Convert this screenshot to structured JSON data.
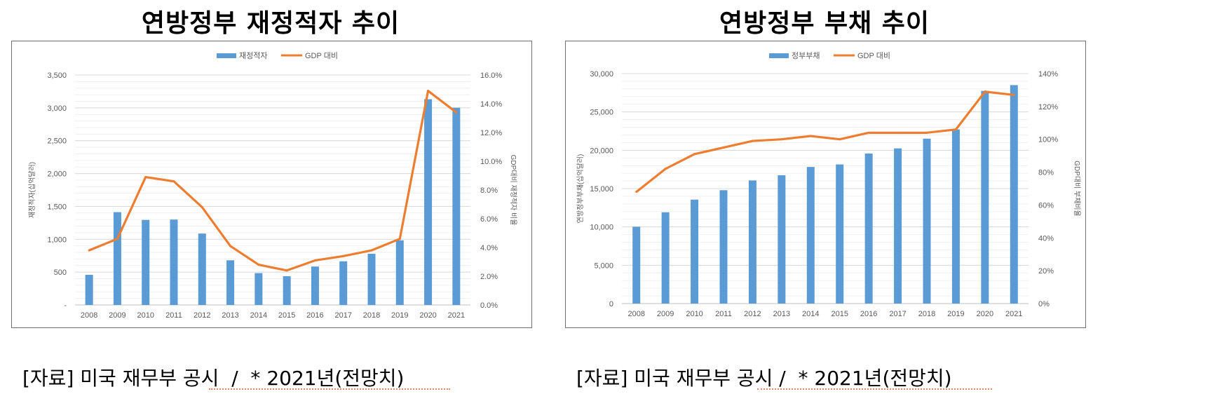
{
  "charts": [
    {
      "panel_title": "연방정부 재정적자 추이",
      "source_note": "[자료] 미국 재무부 공시  /  * 2021년(전망치)"
    },
    {
      "panel_title": "연방정부 부채 추이",
      "source_note": "[자료] 미국 재무부 공시 /  * 2021년(전망치)"
    }
  ],
  "colors": {
    "bar": "#5B9BD5",
    "line": "#ED7D31"
  },
  "chart_data": [
    {
      "type": "bar",
      "categories": [
        "2008",
        "2009",
        "2010",
        "2011",
        "2012",
        "2013",
        "2014",
        "2015",
        "2016",
        "2017",
        "2018",
        "2019",
        "2020",
        "2021"
      ],
      "series": [
        {
          "name": "재정적자",
          "kind": "bar",
          "axis": "left",
          "values": [
            459,
            1413,
            1294,
            1300,
            1087,
            680,
            485,
            438,
            585,
            665,
            779,
            984,
            3132,
            3003
          ]
        },
        {
          "name": "GDP 대비",
          "kind": "line",
          "axis": "right",
          "values": [
            3.8,
            4.6,
            8.9,
            8.6,
            6.8,
            4.1,
            2.8,
            2.4,
            3.1,
            3.4,
            3.8,
            4.6,
            14.9,
            13.4
          ]
        }
      ],
      "ylabel": "재정적자(십억달러)",
      "y2label": "GDP대비 재정적자 비율",
      "ylim": [
        0,
        3500
      ],
      "yticks": [
        "-",
        "500",
        "1,000",
        "1,500",
        "2,000",
        "2,500",
        "3,000",
        "3,500"
      ],
      "y2lim": [
        0,
        16
      ],
      "y2ticks": [
        "0.0%",
        "2.0%",
        "4.0%",
        "6.0%",
        "8.0%",
        "10.0%",
        "12.0%",
        "14.0%",
        "16.0%"
      ],
      "legend_position": "top-center",
      "grid": true
    },
    {
      "type": "bar",
      "categories": [
        "2008",
        "2009",
        "2010",
        "2011",
        "2012",
        "2013",
        "2014",
        "2015",
        "2016",
        "2017",
        "2018",
        "2019",
        "2020",
        "2021"
      ],
      "series": [
        {
          "name": "정부부채",
          "kind": "bar",
          "axis": "left",
          "values": [
            10025,
            11910,
            13562,
            14790,
            16066,
            16738,
            17824,
            18151,
            19573,
            20245,
            21516,
            22719,
            27748,
            28500
          ]
        },
        {
          "name": "GDP 대비",
          "kind": "line",
          "axis": "right",
          "values": [
            68,
            82,
            91,
            95,
            99,
            100,
            102,
            100,
            104,
            104,
            104,
            106,
            129,
            127
          ]
        }
      ],
      "ylabel": "연방정부부채(십억달러)",
      "y2label": "GDP대비 부채비율",
      "ylim": [
        0,
        30000
      ],
      "yticks": [
        "0",
        "5,000",
        "10,000",
        "15,000",
        "20,000",
        "25,000",
        "30,000"
      ],
      "y2lim": [
        0,
        140
      ],
      "y2ticks": [
        "0%",
        "20%",
        "40%",
        "60%",
        "80%",
        "100%",
        "120%",
        "140%"
      ],
      "legend_position": "top-center",
      "grid": true
    }
  ]
}
